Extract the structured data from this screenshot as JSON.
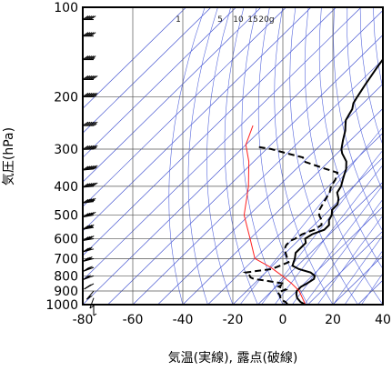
{
  "chart_data": {
    "type": "line",
    "title": "",
    "xlabel": "気温(実線), 露点(破線)",
    "ylabel": "気圧(hPa)",
    "xlim": [
      -80,
      40
    ],
    "ylim": [
      1000,
      100
    ],
    "y_scale": "log",
    "x_ticks": [
      "-80",
      "-60",
      "-40",
      "-20",
      "0",
      "20",
      "40"
    ],
    "x_tick_values": [
      -80,
      -60,
      -40,
      -20,
      0,
      20,
      40
    ],
    "y_ticks": [
      "100",
      "200",
      "300",
      "400",
      "500",
      "600",
      "700",
      "800",
      "900",
      "1000"
    ],
    "y_tick_values": [
      100,
      200,
      300,
      400,
      500,
      600,
      700,
      800,
      900,
      1000
    ],
    "mixing_ratio_labels": [
      "1",
      "5",
      "10",
      "15",
      "20g"
    ],
    "mixing_ratio_values": [
      1,
      5,
      10,
      15,
      20
    ],
    "colors": {
      "isotherm": "#3344cc",
      "dry_adiabat": "#5566dd",
      "mixing_ratio": "#5566dd",
      "parcel": "#ff2020",
      "profile": "#000000",
      "grid": "#555555",
      "wind": "#000000"
    },
    "series": [
      {
        "style": "solid",
        "points": [
          [
            9,
            1000
          ],
          [
            6,
            980
          ],
          [
            3,
            950
          ],
          [
            1,
            920
          ],
          [
            0,
            900
          ],
          [
            0,
            870
          ],
          [
            1,
            850
          ],
          [
            2,
            820
          ],
          [
            1,
            800
          ],
          [
            -2,
            780
          ],
          [
            -8,
            760
          ],
          [
            -12,
            740
          ],
          [
            -13,
            720
          ],
          [
            -14,
            700
          ],
          [
            -16,
            670
          ],
          [
            -16,
            640
          ],
          [
            -16,
            620
          ],
          [
            -18,
            600
          ],
          [
            -17,
            580
          ],
          [
            -14,
            560
          ],
          [
            -14,
            540
          ],
          [
            -16,
            520
          ],
          [
            -17,
            500
          ],
          [
            -19,
            480
          ],
          [
            -19,
            460
          ],
          [
            -21,
            440
          ],
          [
            -24,
            420
          ],
          [
            -25,
            400
          ],
          [
            -27,
            380
          ],
          [
            -29,
            360
          ],
          [
            -30,
            350
          ],
          [
            -33,
            330
          ],
          [
            -38,
            310
          ],
          [
            -40,
            300
          ],
          [
            -43,
            280
          ],
          [
            -46,
            260
          ],
          [
            -48,
            250
          ],
          [
            -50,
            240
          ],
          [
            -51,
            230
          ],
          [
            -52,
            220
          ],
          [
            -54,
            210
          ],
          [
            -55,
            200
          ],
          [
            -56,
            190
          ],
          [
            -57,
            180
          ],
          [
            -58,
            170
          ],
          [
            -59,
            160
          ],
          [
            -60,
            150
          ],
          [
            -61,
            140
          ],
          [
            -62,
            130
          ],
          [
            -63,
            120
          ],
          [
            -64,
            115
          ],
          [
            -65,
            112
          ]
        ]
      },
      {
        "style": "dashed",
        "points": [
          [
            2,
            1000
          ],
          [
            0,
            980
          ],
          [
            -3,
            960
          ],
          [
            -5,
            930
          ],
          [
            -7,
            910
          ],
          [
            -5,
            890
          ],
          [
            -9,
            870
          ],
          [
            -8,
            850
          ],
          [
            -17,
            830
          ],
          [
            -22,
            820
          ],
          [
            -24,
            810
          ],
          [
            -26,
            790
          ],
          [
            -28,
            780
          ],
          [
            -24,
            770
          ],
          [
            -19,
            760
          ],
          [
            -17,
            740
          ],
          [
            -15,
            720
          ],
          [
            -17,
            700
          ],
          [
            -20,
            670
          ],
          [
            -22,
            650
          ],
          [
            -23,
            630
          ],
          [
            -23,
            610
          ],
          [
            -22,
            600
          ],
          [
            -21,
            580
          ],
          [
            -18,
            560
          ],
          [
            -17,
            540
          ],
          [
            -19,
            520
          ],
          [
            -22,
            500
          ],
          [
            -24,
            480
          ],
          [
            -25,
            460
          ],
          [
            -26,
            440
          ],
          [
            -27,
            420
          ],
          [
            -29,
            400
          ],
          [
            -30,
            380
          ],
          [
            -32,
            360
          ],
          [
            -38,
            350
          ],
          [
            -50,
            330
          ],
          [
            -52,
            320
          ],
          [
            -60,
            310
          ],
          [
            -68,
            300
          ],
          [
            -74,
            295
          ]
        ]
      },
      {
        "style": "parcel",
        "points": [
          [
            9,
            1000
          ],
          [
            1,
            900
          ],
          [
            -5,
            850
          ],
          [
            -12,
            800
          ],
          [
            -20,
            750
          ],
          [
            -30,
            700
          ],
          [
            -40,
            600
          ],
          [
            -52,
            500
          ],
          [
            -62,
            400
          ],
          [
            -72,
            330
          ],
          [
            -80,
            290
          ],
          [
            -85,
            250
          ]
        ]
      }
    ],
    "wind_barbs": [
      {
        "p": 1000,
        "speed_kt": 5,
        "dir": 180
      },
      {
        "p": 950,
        "speed_kt": 10,
        "dir": 200
      },
      {
        "p": 900,
        "speed_kt": 15,
        "dir": 220
      },
      {
        "p": 850,
        "speed_kt": 20,
        "dir": 240
      },
      {
        "p": 800,
        "speed_kt": 25,
        "dir": 250
      },
      {
        "p": 750,
        "speed_kt": 30,
        "dir": 250
      },
      {
        "p": 700,
        "speed_kt": 35,
        "dir": 255
      },
      {
        "p": 650,
        "speed_kt": 35,
        "dir": 255
      },
      {
        "p": 600,
        "speed_kt": 40,
        "dir": 260
      },
      {
        "p": 550,
        "speed_kt": 45,
        "dir": 260
      },
      {
        "p": 500,
        "speed_kt": 50,
        "dir": 260
      },
      {
        "p": 450,
        "speed_kt": 55,
        "dir": 262
      },
      {
        "p": 400,
        "speed_kt": 60,
        "dir": 265
      },
      {
        "p": 350,
        "speed_kt": 65,
        "dir": 265
      },
      {
        "p": 300,
        "speed_kt": 70,
        "dir": 268
      },
      {
        "p": 250,
        "speed_kt": 70,
        "dir": 270
      },
      {
        "p": 200,
        "speed_kt": 65,
        "dir": 270
      },
      {
        "p": 175,
        "speed_kt": 60,
        "dir": 270
      },
      {
        "p": 150,
        "speed_kt": 55,
        "dir": 270
      },
      {
        "p": 125,
        "speed_kt": 50,
        "dir": 270
      },
      {
        "p": 110,
        "speed_kt": 50,
        "dir": 270
      }
    ]
  }
}
